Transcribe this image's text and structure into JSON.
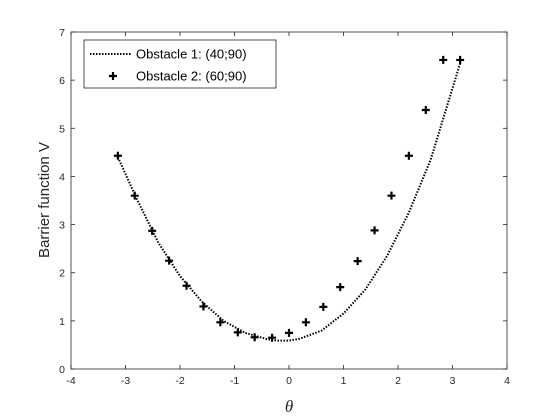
{
  "chart_data": {
    "type": "line",
    "title": "",
    "xlabel": "θ",
    "ylabel": "Barrier function V",
    "xlim": [
      -4,
      4
    ],
    "ylim": [
      0,
      7
    ],
    "xticks": [
      -4,
      -3,
      -2,
      -1,
      0,
      1,
      2,
      3,
      4
    ],
    "yticks": [
      0,
      1,
      2,
      3,
      4,
      5,
      6,
      7
    ],
    "grid": false,
    "legend_position": "top-left",
    "series": [
      {
        "name": "Obstacle 1: (40;90)",
        "style": "dotted-line",
        "color": "#000000",
        "x": [
          -3.14,
          -2.8,
          -2.4,
          -2.0,
          -1.6,
          -1.2,
          -0.8,
          -0.4,
          -0.2,
          0.0,
          0.2,
          0.6,
          1.0,
          1.4,
          1.8,
          2.2,
          2.6,
          3.14
        ],
        "y": [
          4.4,
          3.55,
          2.63,
          1.93,
          1.4,
          1.0,
          0.75,
          0.62,
          0.59,
          0.59,
          0.63,
          0.8,
          1.15,
          1.65,
          2.35,
          3.25,
          4.35,
          6.35
        ]
      },
      {
        "name": "Obstacle 2: (60;90)",
        "style": "plus-markers",
        "color": "#000000",
        "x": [
          -3.14,
          -2.83,
          -2.51,
          -2.2,
          -1.88,
          -1.57,
          -1.26,
          -0.94,
          -0.63,
          -0.31,
          0.0,
          0.31,
          0.63,
          0.94,
          1.26,
          1.57,
          1.88,
          2.2,
          2.51,
          2.83,
          3.14
        ],
        "y": [
          4.43,
          3.6,
          2.87,
          2.25,
          1.73,
          1.3,
          0.97,
          0.76,
          0.66,
          0.65,
          0.75,
          0.97,
          1.29,
          1.7,
          2.24,
          2.88,
          3.6,
          4.43,
          5.38,
          6.42,
          6.42
        ]
      }
    ]
  }
}
